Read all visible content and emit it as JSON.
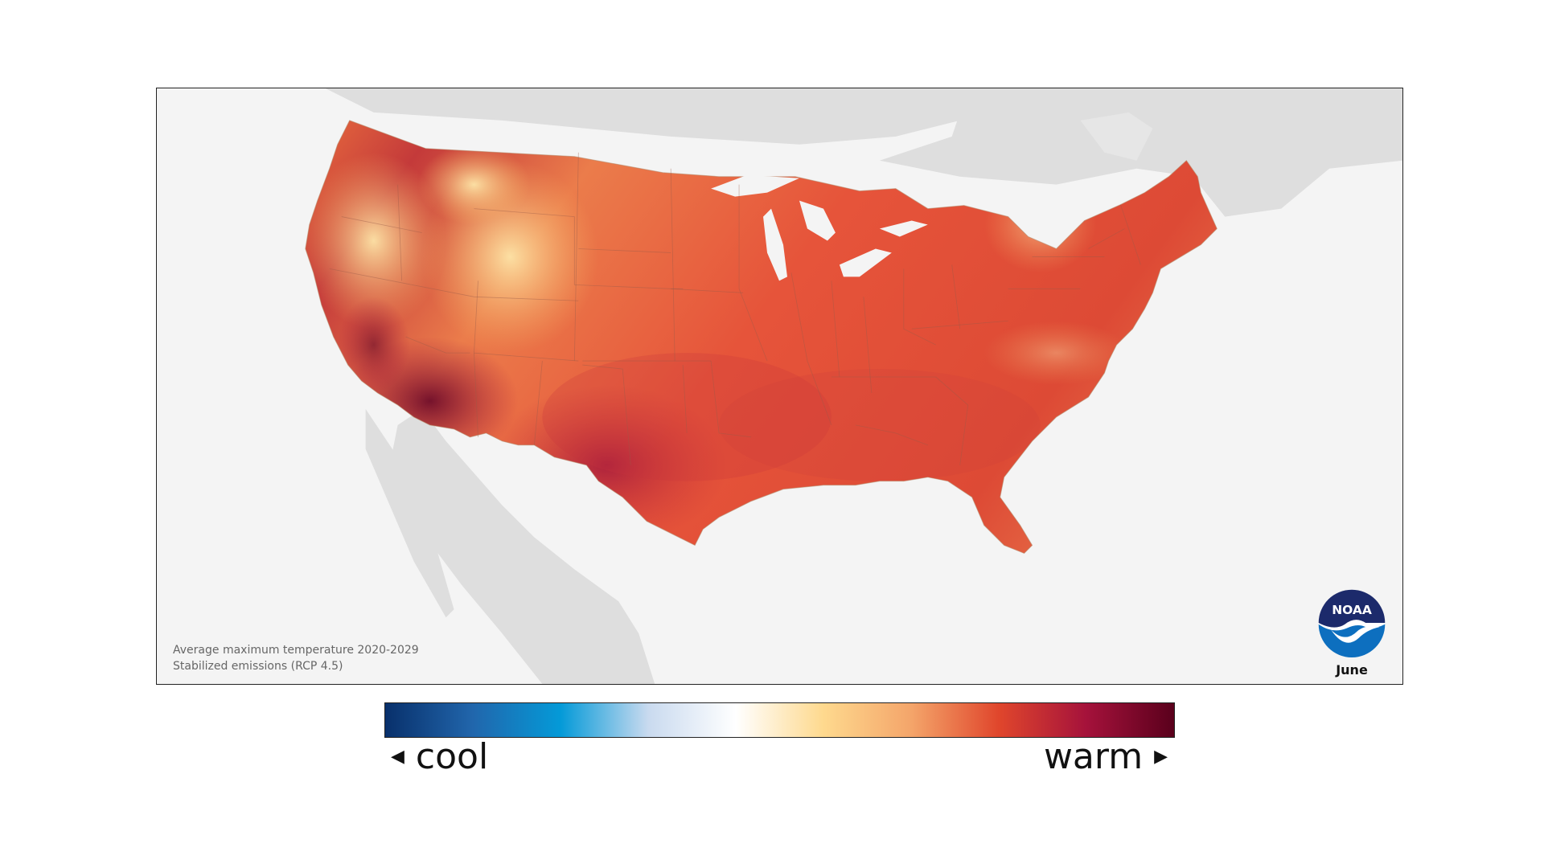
{
  "map": {
    "caption_line1": "Average maximum temperature 2020-2029",
    "caption_line2": "Stabilized emissions (RCP 4.5)",
    "month": "June",
    "region": "Contiguous United States",
    "background_color": "#f4f4f4",
    "land_color": "#dedede"
  },
  "logo": {
    "text": "NOAA",
    "colors": {
      "dark": "#1c2a6b",
      "light": "#0d6fbf"
    }
  },
  "legend": {
    "cool_label": "cool",
    "warm_label": "warm",
    "cool_arrow_icon": "triangle-left-icon",
    "warm_arrow_icon": "triangle-right-icon",
    "colors": [
      "#08306b",
      "#2166ac",
      "#049ad8",
      "#c9daef",
      "#ffffff",
      "#fed98e",
      "#f4a56a",
      "#e0462c",
      "#a5123b",
      "#5a001c"
    ]
  }
}
